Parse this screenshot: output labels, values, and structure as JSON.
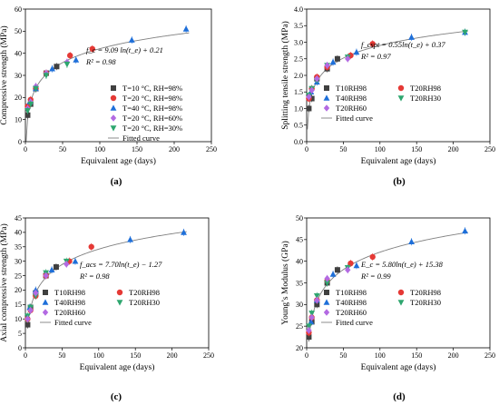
{
  "figure": {
    "background": "#ffffff"
  },
  "chart_data": [
    {
      "type": "scatter",
      "panel_label": "(a)",
      "xlabel": "Equivalent age (days)",
      "ylabel": "Compressive strength (MPa)",
      "xlim": [
        0,
        250
      ],
      "ylim": [
        0,
        60
      ],
      "xticks": [
        0,
        50,
        100,
        150,
        200,
        250
      ],
      "yticks": [
        0,
        10,
        20,
        30,
        40,
        50,
        60
      ],
      "equation": [
        "f_c = 9.09 ln(t_e) + 0.21",
        "R² = 0.98"
      ],
      "legend_position": "center-right",
      "fit": {
        "name": "Fitted curve",
        "a": 9.09,
        "b": 0.21,
        "color": "#808080"
      },
      "series": [
        {
          "name": "T=10 °C, RH=98%",
          "marker": "square",
          "color": "#404040",
          "points": [
            [
              3,
              12
            ],
            [
              7,
              17
            ],
            [
              14,
              24
            ],
            [
              28,
              31
            ],
            [
              42,
              34
            ]
          ]
        },
        {
          "name": "T=20 °C, RH=98%",
          "marker": "circle",
          "color": "#e53935",
          "points": [
            [
              3,
              16
            ],
            [
              7,
              19
            ],
            [
              14,
              24
            ],
            [
              28,
              31
            ],
            [
              60,
              39
            ],
            [
              90,
              42
            ]
          ]
        },
        {
          "name": "T=40 °C, RH=98%",
          "marker": "triangle-up",
          "color": "#1e6fd9",
          "points": [
            [
              6,
              18
            ],
            [
              14,
              24
            ],
            [
              36,
              33
            ],
            [
              68,
              37
            ],
            [
              143,
              46
            ],
            [
              216,
              51
            ]
          ]
        },
        {
          "name": "T=20 °C, RH=60%",
          "marker": "diamond",
          "color": "#b36ae2",
          "points": [
            [
              3,
              15
            ],
            [
              7,
              18
            ],
            [
              14,
              25
            ],
            [
              28,
              31
            ],
            [
              56,
              36
            ]
          ]
        },
        {
          "name": "T=20 °C, RH=30%",
          "marker": "triangle-down",
          "color": "#2ea66f",
          "points": [
            [
              3,
              14
            ],
            [
              7,
              17
            ],
            [
              14,
              24
            ],
            [
              28,
              30
            ],
            [
              56,
              35
            ]
          ]
        }
      ]
    },
    {
      "type": "scatter",
      "panel_label": "(b)",
      "xlabel": "Equivalent age (days)",
      "ylabel": "Splitting tensile strength (MPa)",
      "xlim": [
        0,
        250
      ],
      "ylim": [
        0,
        4.0
      ],
      "xticks": [
        0,
        50,
        100,
        150,
        200,
        250
      ],
      "yticks": [
        0.0,
        0.5,
        1.0,
        1.5,
        2.0,
        2.5,
        3.0,
        3.5,
        4.0
      ],
      "equation": [
        "f_cspt = 0.55ln(t_e) + 0.37",
        "R² = 0.97"
      ],
      "legend_position": "center-right",
      "fit": {
        "name": "Fitted curve",
        "a": 0.55,
        "b": 0.37,
        "color": "#808080"
      },
      "series": [
        {
          "name": "T10RH98",
          "marker": "square",
          "color": "#404040",
          "points": [
            [
              3,
              1.0
            ],
            [
              7,
              1.3
            ],
            [
              14,
              1.9
            ],
            [
              28,
              2.2
            ],
            [
              42,
              2.5
            ]
          ]
        },
        {
          "name": "T20RH98",
          "marker": "circle",
          "color": "#e53935",
          "points": [
            [
              3,
              1.3
            ],
            [
              7,
              1.6
            ],
            [
              14,
              1.95
            ],
            [
              28,
              2.25
            ],
            [
              60,
              2.6
            ],
            [
              90,
              2.95
            ]
          ]
        },
        {
          "name": "T40RH98",
          "marker": "triangle-up",
          "color": "#1e6fd9",
          "points": [
            [
              6,
              1.5
            ],
            [
              14,
              1.8
            ],
            [
              36,
              2.4
            ],
            [
              68,
              2.7
            ],
            [
              143,
              3.15
            ],
            [
              216,
              3.3
            ]
          ]
        },
        {
          "name": "T20RH30",
          "marker": "triangle-down",
          "color": "#2ea66f",
          "points": [
            [
              3,
              1.4
            ],
            [
              7,
              1.6
            ],
            [
              14,
              1.85
            ],
            [
              28,
              2.3
            ],
            [
              56,
              2.55
            ],
            [
              216,
              3.3
            ]
          ]
        },
        {
          "name": "T20RH60",
          "marker": "diamond",
          "color": "#b36ae2",
          "points": [
            [
              3,
              1.35
            ],
            [
              7,
              1.55
            ],
            [
              14,
              1.9
            ],
            [
              28,
              2.3
            ],
            [
              56,
              2.5
            ]
          ]
        }
      ]
    },
    {
      "type": "scatter",
      "panel_label": "(c)",
      "xlabel": "Equivalent age (days)",
      "ylabel": "Axial compressive strength (MPa)",
      "xlim": [
        0,
        250
      ],
      "ylim": [
        0,
        45
      ],
      "xticks": [
        0,
        50,
        100,
        150,
        200,
        250
      ],
      "yticks": [
        0,
        5,
        10,
        15,
        20,
        25,
        30,
        35,
        40,
        45
      ],
      "equation": [
        "f_acs = 7.70ln(t_e) − 1.27",
        "R² = 0.98"
      ],
      "legend_position": "center-right",
      "fit": {
        "name": "Fitted curve",
        "a": 7.7,
        "b": -1.27,
        "color": "#808080"
      },
      "series": [
        {
          "name": "T10RH98",
          "marker": "square",
          "color": "#404040",
          "points": [
            [
              3,
              8
            ],
            [
              7,
              14
            ],
            [
              14,
              19
            ],
            [
              28,
              25
            ],
            [
              42,
              28
            ]
          ]
        },
        {
          "name": "T20RH98",
          "marker": "circle",
          "color": "#e53935",
          "points": [
            [
              3,
              10
            ],
            [
              7,
              13
            ],
            [
              14,
              18
            ],
            [
              28,
              25
            ],
            [
              60,
              30
            ],
            [
              90,
              35
            ]
          ]
        },
        {
          "name": "T40RH98",
          "marker": "triangle-up",
          "color": "#1e6fd9",
          "points": [
            [
              6,
              14
            ],
            [
              14,
              20
            ],
            [
              36,
              27
            ],
            [
              68,
              30
            ],
            [
              143,
              37.5
            ],
            [
              216,
              40
            ]
          ]
        },
        {
          "name": "T20RH30",
          "marker": "triangle-down",
          "color": "#2ea66f",
          "points": [
            [
              3,
              11
            ],
            [
              7,
              14
            ],
            [
              14,
              18
            ],
            [
              28,
              26
            ],
            [
              56,
              30
            ]
          ]
        },
        {
          "name": "T20RH60",
          "marker": "diamond",
          "color": "#b36ae2",
          "points": [
            [
              3,
              10
            ],
            [
              7,
              13
            ],
            [
              14,
              19
            ],
            [
              28,
              25
            ],
            [
              56,
              29
            ]
          ]
        }
      ]
    },
    {
      "type": "scatter",
      "panel_label": "(d)",
      "xlabel": "Equivalent age (days)",
      "ylabel": "Young’s Modulus (GPa)",
      "xlim": [
        0,
        250
      ],
      "ylim": [
        20,
        50
      ],
      "xticks": [
        0,
        50,
        100,
        150,
        200,
        250
      ],
      "yticks": [
        20,
        25,
        30,
        35,
        40,
        45,
        50
      ],
      "equation": [
        "E_c = 5.80ln(t_e) + 15.38",
        "R² = 0.99"
      ],
      "legend_position": "center-right",
      "fit": {
        "name": "Fitted curve",
        "a": 5.8,
        "b": 15.38,
        "color": "#808080"
      },
      "series": [
        {
          "name": "T10RH98",
          "marker": "square",
          "color": "#404040",
          "points": [
            [
              3,
              22.5
            ],
            [
              7,
              26
            ],
            [
              14,
              30
            ],
            [
              28,
              35
            ],
            [
              42,
              38
            ]
          ]
        },
        {
          "name": "T20RH98",
          "marker": "circle",
          "color": "#e53935",
          "points": [
            [
              3,
              23.5
            ],
            [
              7,
              27
            ],
            [
              14,
              31
            ],
            [
              28,
              35.5
            ],
            [
              60,
              39.5
            ],
            [
              90,
              41
            ]
          ]
        },
        {
          "name": "T40RH98",
          "marker": "triangle-up",
          "color": "#1e6fd9",
          "points": [
            [
              6,
              26
            ],
            [
              14,
              31
            ],
            [
              36,
              37
            ],
            [
              68,
              39
            ],
            [
              143,
              44.5
            ],
            [
              216,
              47
            ]
          ]
        },
        {
          "name": "T20RH30",
          "marker": "triangle-down",
          "color": "#2ea66f",
          "points": [
            [
              3,
              25
            ],
            [
              7,
              28
            ],
            [
              14,
              32
            ],
            [
              28,
              35
            ],
            [
              56,
              38.5
            ]
          ]
        },
        {
          "name": "T20RH60",
          "marker": "diamond",
          "color": "#b36ae2",
          "points": [
            [
              3,
              24
            ],
            [
              7,
              27
            ],
            [
              14,
              31
            ],
            [
              28,
              36
            ],
            [
              56,
              38
            ]
          ]
        }
      ]
    }
  ]
}
